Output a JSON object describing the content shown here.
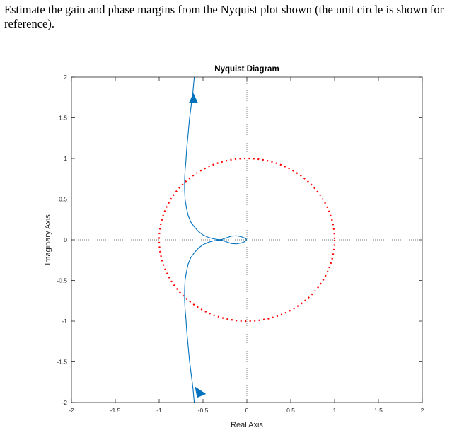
{
  "question": {
    "text": "Estimate the gain and phase margins from the Nyquist plot shown (the unit circle is shown for reference)."
  },
  "chart_data": {
    "type": "line",
    "title": "Nyquist Diagram",
    "xlabel": "Real Axis",
    "ylabel": "Imaginary Axis",
    "xlim": [
      -2,
      2
    ],
    "ylim": [
      -2,
      2
    ],
    "xticks": [
      "-2",
      "-1.5",
      "-1",
      "-0.5",
      "0",
      "0.5",
      "1",
      "1.5",
      "2"
    ],
    "yticks": [
      "2",
      "1.5",
      "1",
      "0.5",
      "0",
      "-0.5",
      "-1",
      "-1.5",
      "-2"
    ],
    "grid": false,
    "reference_lines": [
      "x=0 dotted",
      "y=0 dotted"
    ],
    "series": [
      {
        "color": "#0072BD",
        "style": "solid",
        "x": [
          -0.6,
          -0.615,
          -0.635,
          -0.655,
          -0.67,
          -0.685,
          -0.695,
          -0.705,
          -0.71,
          -0.71,
          -0.705,
          -0.69,
          -0.67,
          -0.64,
          -0.6,
          -0.55,
          -0.5,
          -0.44,
          -0.38,
          -0.33,
          -0.29,
          -0.24,
          -0.18,
          -0.12,
          -0.07,
          -0.03,
          -0.01,
          0.0
        ],
        "y": [
          2.0,
          1.82,
          1.65,
          1.48,
          1.3,
          1.13,
          0.97,
          0.85,
          0.74,
          0.62,
          0.5,
          0.4,
          0.3,
          0.22,
          0.16,
          0.1,
          0.06,
          0.03,
          0.012,
          0.004,
          0.003,
          0.022,
          0.045,
          0.05,
          0.04,
          0.025,
          0.01,
          0.0
        ]
      },
      {
        "color": "#0072BD",
        "style": "solid",
        "x": [
          -0.6,
          -0.615,
          -0.635,
          -0.655,
          -0.67,
          -0.685,
          -0.695,
          -0.705,
          -0.71,
          -0.71,
          -0.705,
          -0.69,
          -0.67,
          -0.64,
          -0.6,
          -0.55,
          -0.5,
          -0.44,
          -0.38,
          -0.33,
          -0.29,
          -0.24,
          -0.18,
          -0.12,
          -0.07,
          -0.03,
          -0.01,
          0.0
        ],
        "y": [
          -2.0,
          -1.82,
          -1.65,
          -1.48,
          -1.3,
          -1.13,
          -0.97,
          -0.85,
          -0.74,
          -0.62,
          -0.5,
          -0.4,
          -0.3,
          -0.22,
          -0.16,
          -0.1,
          -0.06,
          -0.03,
          -0.012,
          -0.004,
          -0.003,
          -0.022,
          -0.045,
          -0.05,
          -0.04,
          -0.025,
          -0.01,
          0.0
        ]
      },
      {
        "color": "#FF0000",
        "style": "dotted",
        "shape": "unit-circle",
        "center": [
          0,
          0
        ],
        "radius": 1
      }
    ],
    "direction_arrows": [
      {
        "x": -0.61,
        "y": 1.72,
        "heading": "up"
      },
      {
        "x": -0.55,
        "y": -1.86,
        "heading": "down-right"
      }
    ]
  }
}
